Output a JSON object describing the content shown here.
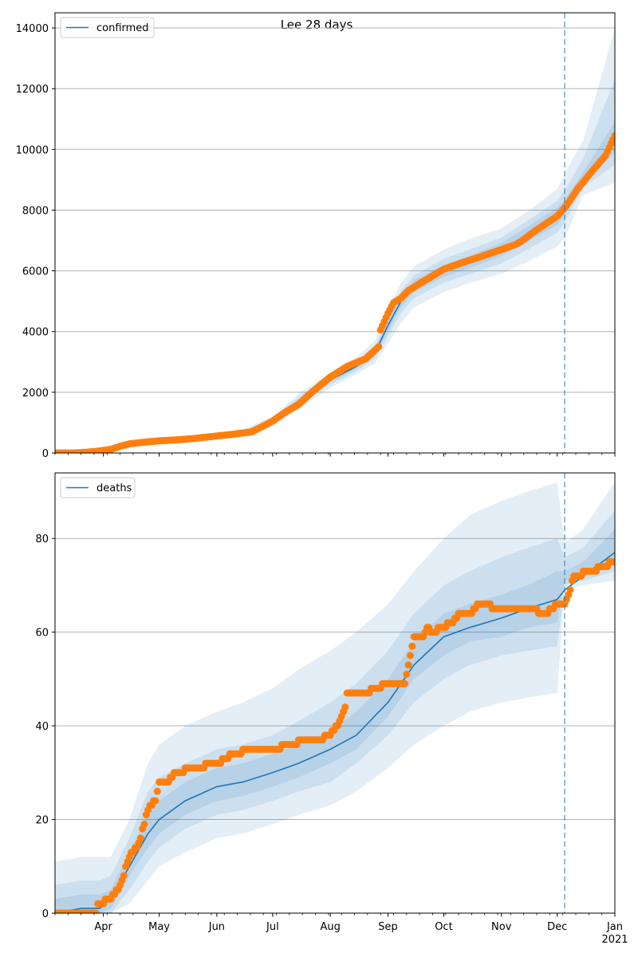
{
  "figure": {
    "title": "Lee 28 days",
    "colors": {
      "model": "#1f77b4",
      "observed": "#ff7f0e",
      "band": "#1f77b4",
      "grid": "#b0b0b0",
      "axis": "#000000"
    }
  },
  "chart_data": [
    {
      "type": "line",
      "title": "Lee 28 days",
      "series_name": "confirmed",
      "legend": "upper-left",
      "grid": "horizontal",
      "x_range": [
        "2020-03-06",
        "2021-01-01"
      ],
      "x_ticks": [
        {
          "date": "2020-04-01",
          "label": "Apr"
        },
        {
          "date": "2020-05-01",
          "label": "May"
        },
        {
          "date": "2020-06-01",
          "label": "Jun"
        },
        {
          "date": "2020-07-01",
          "label": "Jul"
        },
        {
          "date": "2020-08-01",
          "label": "Aug"
        },
        {
          "date": "2020-09-01",
          "label": "Sep"
        },
        {
          "date": "2020-10-01",
          "label": "Oct"
        },
        {
          "date": "2020-11-01",
          "label": "Nov"
        },
        {
          "date": "2020-12-01",
          "label": "Dec"
        },
        {
          "date": "2021-01-01",
          "label": "Jan\n2021"
        }
      ],
      "forecast_start": "2020-12-05",
      "ylim": [
        0,
        14500
      ],
      "y_ticks": [
        0,
        2000,
        4000,
        6000,
        8000,
        10000,
        12000,
        14000
      ],
      "dates": [
        "2020-03-06",
        "2020-03-20",
        "2020-04-01",
        "2020-04-15",
        "2020-05-01",
        "2020-05-15",
        "2020-06-01",
        "2020-06-15",
        "2020-07-01",
        "2020-07-15",
        "2020-08-01",
        "2020-08-15",
        "2020-08-25",
        "2020-09-01",
        "2020-09-08",
        "2020-09-15",
        "2020-10-01",
        "2020-10-15",
        "2020-11-01",
        "2020-11-15",
        "2020-12-01",
        "2020-12-05",
        "2020-12-15",
        "2021-01-01"
      ],
      "median": [
        0,
        10,
        120,
        330,
        430,
        500,
        590,
        680,
        1050,
        1700,
        2400,
        2850,
        3300,
        4200,
        5000,
        5500,
        6000,
        6300,
        6700,
        7200,
        7800,
        8100,
        9000,
        10300
      ],
      "bands": [
        {
          "lower": [
            0,
            5,
            100,
            290,
            380,
            440,
            520,
            590,
            900,
            1450,
            2150,
            2600,
            2950,
            3600,
            4300,
            4800,
            5300,
            5600,
            5900,
            6300,
            6800,
            7100,
            8500,
            8900
          ],
          "upper": [
            0,
            15,
            140,
            370,
            480,
            560,
            660,
            780,
            1200,
            1950,
            2650,
            3150,
            3700,
            4750,
            5600,
            6150,
            6700,
            7050,
            7400,
            7950,
            8700,
            9200,
            10300,
            14000
          ]
        },
        {
          "lower": [
            0,
            7,
            108,
            305,
            400,
            465,
            550,
            630,
            960,
            1550,
            2250,
            2700,
            3100,
            3850,
            4600,
            5100,
            5600,
            5900,
            6250,
            6700,
            7250,
            7600,
            8750,
            9500
          ],
          "upper": [
            0,
            13,
            132,
            355,
            460,
            535,
            630,
            730,
            1140,
            1850,
            2550,
            3020,
            3520,
            4500,
            5350,
            5850,
            6400,
            6700,
            7100,
            7650,
            8300,
            8650,
            9700,
            12300
          ],
          "_": 0
        },
        {
          "lower": [
            0,
            9,
            114,
            318,
            415,
            483,
            570,
            655,
            1005,
            1625,
            2330,
            2780,
            3200,
            4020,
            4800,
            5300,
            5800,
            6100,
            6480,
            6950,
            7520,
            7850,
            8880,
            9900
          ],
          "upper": [
            0,
            11,
            126,
            342,
            445,
            517,
            610,
            705,
            1095,
            1775,
            2470,
            2920,
            3400,
            4380,
            5200,
            5700,
            6200,
            6500,
            6920,
            7450,
            8080,
            8350,
            9250,
            10900
          ]
        }
      ],
      "observed_dates": [
        "2020-03-06",
        "2020-03-15",
        "2020-03-22",
        "2020-03-29",
        "2020-04-05",
        "2020-04-10",
        "2020-04-15",
        "2020-04-22",
        "2020-05-01",
        "2020-05-10",
        "2020-05-20",
        "2020-06-01",
        "2020-06-10",
        "2020-06-20",
        "2020-07-01",
        "2020-07-08",
        "2020-07-15",
        "2020-07-22",
        "2020-08-01",
        "2020-08-10",
        "2020-08-20",
        "2020-08-27",
        "2020-08-28",
        "2020-09-01",
        "2020-09-04",
        "2020-09-08",
        "2020-09-12",
        "2020-09-20",
        "2020-10-01",
        "2020-10-10",
        "2020-10-20",
        "2020-11-01",
        "2020-11-10",
        "2020-11-20",
        "2020-12-01",
        "2020-12-06",
        "2020-12-12",
        "2020-12-20",
        "2020-12-27",
        "2021-01-01"
      ],
      "observed": [
        0,
        0,
        20,
        60,
        120,
        220,
        300,
        350,
        400,
        430,
        480,
        560,
        620,
        700,
        1050,
        1350,
        1600,
        2000,
        2500,
        2850,
        3100,
        3500,
        4050,
        4600,
        4950,
        5100,
        5350,
        5650,
        6050,
        6250,
        6450,
        6700,
        6900,
        7350,
        7800,
        8150,
        8700,
        9300,
        9800,
        10450
      ]
    },
    {
      "type": "line",
      "series_name": "deaths",
      "legend": "upper-left",
      "grid": "horizontal",
      "x_range": [
        "2020-03-06",
        "2021-01-01"
      ],
      "forecast_start": "2020-12-05",
      "ylim": [
        0,
        94
      ],
      "y_ticks": [
        0,
        20,
        40,
        60,
        80
      ],
      "dates": [
        "2020-03-06",
        "2020-03-20",
        "2020-03-30",
        "2020-04-05",
        "2020-04-15",
        "2020-04-25",
        "2020-05-01",
        "2020-05-15",
        "2020-06-01",
        "2020-06-15",
        "2020-07-01",
        "2020-07-15",
        "2020-08-01",
        "2020-08-15",
        "2020-09-01",
        "2020-09-15",
        "2020-10-01",
        "2020-10-15",
        "2020-11-01",
        "2020-11-15",
        "2020-12-01",
        "2020-12-05",
        "2020-12-15",
        "2021-01-01"
      ],
      "median": [
        0,
        1,
        1,
        3,
        10,
        17,
        20,
        24,
        27,
        28,
        30,
        32,
        35,
        38,
        45,
        53,
        59,
        61,
        63,
        65,
        67,
        69,
        72,
        77
      ],
      "bands": [
        {
          "lower": [
            0,
            0,
            0,
            0,
            2,
            7,
            10,
            13,
            16,
            17,
            19,
            21,
            23,
            26,
            31,
            36,
            40,
            43,
            45,
            46,
            47,
            69,
            70,
            71
          ],
          "upper": [
            11,
            12,
            12,
            12,
            20,
            32,
            36,
            40,
            43,
            45,
            48,
            52,
            56,
            60,
            66,
            73,
            80,
            85,
            88,
            90,
            92,
            79,
            82,
            92
          ]
        },
        {
          "lower": [
            0,
            0,
            0,
            0,
            5,
            11,
            14,
            18,
            21,
            22,
            24,
            26,
            28,
            32,
            38,
            45,
            50,
            53,
            55,
            56,
            57,
            70,
            71,
            73
          ],
          "upper": [
            6,
            7,
            7,
            8,
            16,
            26,
            29,
            32,
            35,
            36,
            38,
            41,
            45,
            49,
            56,
            64,
            70,
            73,
            76,
            78,
            80,
            76,
            78,
            86
          ]
        },
        {
          "lower": [
            0,
            0,
            0,
            1,
            8,
            14,
            17,
            21,
            24,
            25,
            27,
            29,
            32,
            35,
            42,
            50,
            55,
            58,
            59,
            61,
            62,
            71,
            72,
            75
          ],
          "upper": [
            3,
            4,
            4,
            5,
            13,
            21,
            24,
            28,
            31,
            32,
            34,
            36,
            39,
            43,
            50,
            58,
            64,
            66,
            68,
            70,
            73,
            73,
            75,
            82
          ]
        }
      ],
      "observed_dates": [
        "2020-03-06",
        "2020-03-28",
        "2020-03-29",
        "2020-04-05",
        "2020-04-10",
        "2020-04-15",
        "2020-04-20",
        "2020-04-25",
        "2020-04-29",
        "2020-05-01",
        "2020-05-05",
        "2020-05-10",
        "2020-05-20",
        "2020-06-01",
        "2020-06-10",
        "2020-06-20",
        "2020-07-01",
        "2020-07-10",
        "2020-07-20",
        "2020-07-25",
        "2020-08-01",
        "2020-08-05",
        "2020-08-07",
        "2020-08-09",
        "2020-08-10",
        "2020-08-20",
        "2020-08-25",
        "2020-09-01",
        "2020-09-10",
        "2020-09-15",
        "2020-09-20",
        "2020-09-22",
        "2020-09-25",
        "2020-10-01",
        "2020-10-05",
        "2020-10-10",
        "2020-10-15",
        "2020-10-20",
        "2020-11-01",
        "2020-11-15",
        "2020-11-25",
        "2020-12-01",
        "2020-12-05",
        "2020-12-08",
        "2020-12-10",
        "2020-12-20",
        "2020-12-25",
        "2021-01-01"
      ],
      "observed": [
        0,
        0,
        2,
        3,
        6,
        12,
        15,
        22,
        24,
        28,
        28,
        30,
        31,
        32,
        34,
        35,
        35,
        36,
        37,
        37,
        38,
        40,
        42,
        44,
        47,
        47,
        48,
        49,
        49,
        59,
        59,
        61,
        60,
        61,
        62,
        64,
        64,
        66,
        65,
        65,
        64,
        66,
        66,
        69,
        72,
        73,
        74,
        75
      ]
    }
  ]
}
